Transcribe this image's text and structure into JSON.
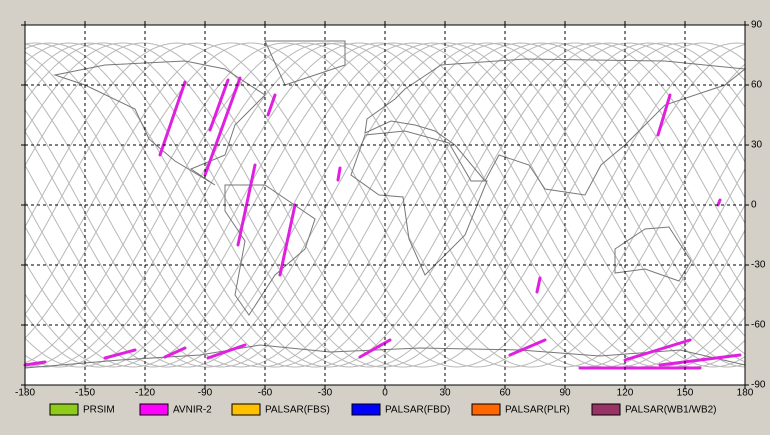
{
  "chart_data": {
    "type": "map",
    "xlim": [
      -180,
      180
    ],
    "xticks": [
      -180,
      -150,
      -120,
      -90,
      -60,
      -30,
      0,
      30,
      60,
      90,
      120,
      150,
      180
    ],
    "ylim": [
      -90,
      90
    ],
    "yticks": [
      90,
      60,
      30,
      0,
      -30,
      -60,
      -90
    ],
    "grid": true,
    "series": [
      {
        "name": "PRSIM",
        "color": "#8fcc1a"
      },
      {
        "name": "AVNIR-2",
        "color": "#ff00ff"
      },
      {
        "name": "PALSAR(FBS)",
        "color": "#ffc000"
      },
      {
        "name": "PALSAR(FBD)",
        "color": "#0000ff"
      },
      {
        "name": "PALSAR(PLR)",
        "color": "#ff6600"
      },
      {
        "name": "PALSAR(WB1/WB2)",
        "color": "#993366"
      }
    ]
  }
}
